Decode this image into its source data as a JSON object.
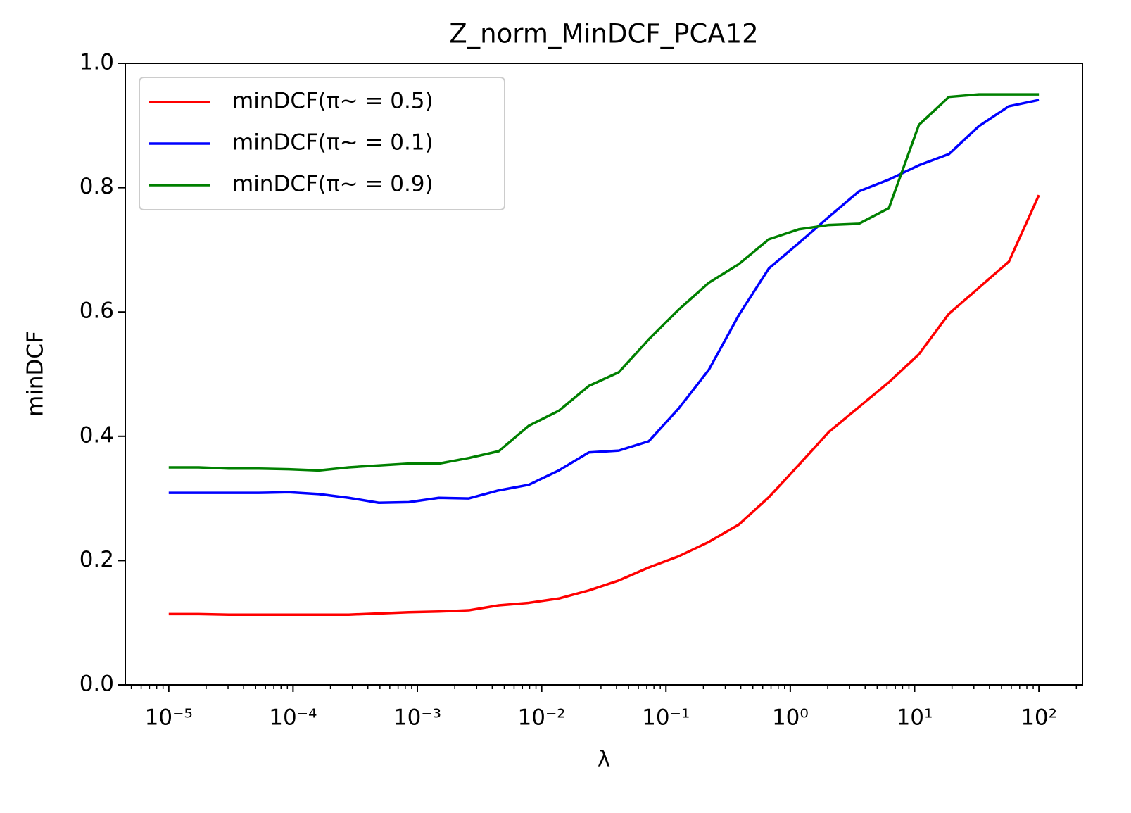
{
  "chart_data": {
    "type": "line",
    "title": "Z_norm_MinDCF_PCA12",
    "xlabel": "λ",
    "ylabel": "minDCF",
    "x": [
      1e-05,
      1.743e-05,
      3.039e-05,
      5.298e-05,
      9.237e-05,
      0.000161,
      0.0002807,
      0.0004894,
      0.0008532,
      0.001487,
      0.002593,
      0.00452,
      0.00788,
      0.01374,
      0.02395,
      0.04175,
      0.07279,
      0.1269,
      0.2212,
      0.3857,
      0.6723,
      1.172,
      2.043,
      3.562,
      6.21,
      10.83,
      18.88,
      32.91,
      57.36,
      100
    ],
    "series": [
      {
        "name": "minDCF(π~ = 0.5)",
        "color": "#ff0000",
        "values": [
          0.114,
          0.114,
          0.113,
          0.113,
          0.113,
          0.113,
          0.113,
          0.115,
          0.117,
          0.118,
          0.12,
          0.128,
          0.132,
          0.139,
          0.152,
          0.168,
          0.189,
          0.207,
          0.23,
          0.258,
          0.302,
          0.354,
          0.407,
          0.447,
          0.487,
          0.532,
          0.597,
          0.639,
          0.681,
          0.788
        ]
      },
      {
        "name": "minDCF(π~ = 0.1)",
        "color": "#0000ff",
        "values": [
          0.309,
          0.309,
          0.309,
          0.309,
          0.31,
          0.307,
          0.301,
          0.293,
          0.294,
          0.301,
          0.3,
          0.313,
          0.322,
          0.345,
          0.374,
          0.377,
          0.392,
          0.445,
          0.507,
          0.595,
          0.67,
          0.711,
          0.753,
          0.794,
          0.813,
          0.836,
          0.854,
          0.899,
          0.931,
          0.941
        ]
      },
      {
        "name": "minDCF(π~ = 0.9)",
        "color": "#008000",
        "values": [
          0.35,
          0.35,
          0.348,
          0.348,
          0.347,
          0.345,
          0.35,
          0.353,
          0.356,
          0.356,
          0.365,
          0.376,
          0.417,
          0.441,
          0.481,
          0.503,
          0.556,
          0.604,
          0.647,
          0.677,
          0.717,
          0.733,
          0.74,
          0.742,
          0.767,
          0.901,
          0.946,
          0.95,
          0.95,
          0.95
        ]
      }
    ],
    "xscale": "log",
    "xlim": [
      4.47e-06,
      224
    ],
    "xticks": [
      {
        "value": 1e-05,
        "label": "10⁻⁵"
      },
      {
        "value": 0.0001,
        "label": "10⁻⁴"
      },
      {
        "value": 0.001,
        "label": "10⁻³"
      },
      {
        "value": 0.01,
        "label": "10⁻²"
      },
      {
        "value": 0.1,
        "label": "10⁻¹"
      },
      {
        "value": 1,
        "label": "10⁰"
      },
      {
        "value": 10,
        "label": "10¹"
      },
      {
        "value": 100,
        "label": "10²"
      }
    ],
    "ylim": [
      0,
      1
    ],
    "yticks": [
      {
        "value": 0,
        "label": "0.0"
      },
      0.2,
      0.4,
      0.6,
      0.8,
      {
        "value": 1,
        "label": "1.0"
      }
    ],
    "legend": "upper left",
    "grid": false
  }
}
